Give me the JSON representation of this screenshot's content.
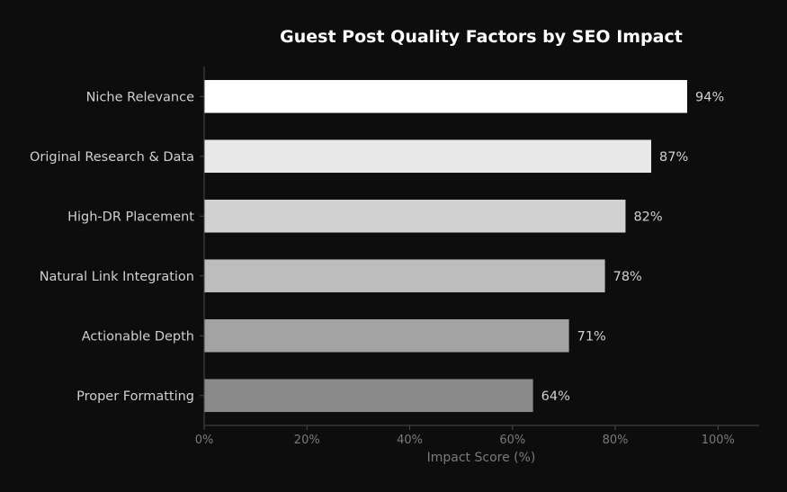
{
  "chart_data": {
    "type": "bar",
    "orientation": "horizontal",
    "title": "Guest Post Quality Factors by SEO Impact",
    "xlabel": "Impact Score (%)",
    "ylabel": "",
    "xlim": [
      0,
      108
    ],
    "x_ticks": [
      0,
      20,
      40,
      60,
      80,
      100
    ],
    "x_tick_labels": [
      "0%",
      "20%",
      "40%",
      "60%",
      "80%",
      "100%"
    ],
    "grid": false,
    "categories": [
      "Niche Relevance",
      "Original Research & Data",
      "High-DR Placement",
      "Natural Link Integration",
      "Actionable Depth",
      "Proper Formatting"
    ],
    "values": [
      94,
      87,
      82,
      78,
      71,
      64
    ],
    "value_labels": [
      "94%",
      "87%",
      "82%",
      "78%",
      "71%",
      "64%"
    ],
    "bar_colors": [
      "#ffffff",
      "#e8e8e8",
      "#d2d1d1",
      "#bdbdbd",
      "#a3a3a3",
      "#8a8a8a"
    ],
    "background_color": "#0d0d0d",
    "title_color": "#ffffff",
    "label_color": "#d0d0d0",
    "tick_color": "#7a7a7a",
    "axis_color": "#4a4a4a"
  }
}
